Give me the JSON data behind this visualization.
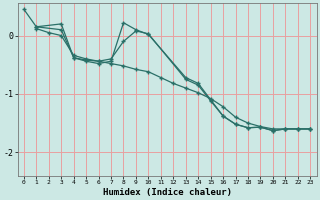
{
  "xlabel": "Humidex (Indice chaleur)",
  "background_color": "#cce8e4",
  "grid_color_v": "#e8a0a0",
  "grid_color_h": "#e8a0a0",
  "line_color": "#2a7068",
  "xlim": [
    -0.5,
    23.5
  ],
  "ylim": [
    -2.4,
    0.55
  ],
  "yticks": [
    0,
    -1,
    -2
  ],
  "xticks": [
    0,
    1,
    2,
    3,
    4,
    5,
    6,
    7,
    8,
    9,
    10,
    11,
    12,
    13,
    14,
    15,
    16,
    17,
    18,
    19,
    20,
    21,
    22,
    23
  ],
  "series": [
    {
      "x": [
        0,
        1,
        3,
        4,
        5,
        6,
        7,
        8,
        9,
        10,
        13,
        14,
        15,
        16,
        17,
        18,
        19,
        20,
        21,
        22,
        23
      ],
      "y": [
        0.45,
        0.15,
        0.2,
        -0.38,
        -0.42,
        -0.44,
        -0.4,
        -0.1,
        0.08,
        0.03,
        -0.75,
        -0.85,
        -1.12,
        -1.38,
        -1.52,
        -1.58,
        -1.57,
        -1.63,
        -1.6,
        -1.6,
        -1.6
      ]
    },
    {
      "x": [
        1,
        3,
        4,
        5,
        6,
        7,
        8,
        9,
        10,
        13,
        14,
        15,
        16,
        17,
        18,
        19,
        20,
        21,
        22,
        23
      ],
      "y": [
        0.15,
        0.1,
        -0.38,
        -0.44,
        -0.48,
        -0.44,
        0.22,
        0.1,
        0.02,
        -0.72,
        -0.82,
        -1.1,
        -1.38,
        -1.52,
        -1.58,
        -1.57,
        -1.63,
        -1.6,
        -1.6,
        -1.6
      ]
    },
    {
      "x": [
        1,
        2,
        3,
        4,
        5,
        6,
        7,
        8,
        9,
        10,
        11,
        12,
        13,
        14,
        15,
        16,
        17,
        18,
        19,
        20,
        21,
        22,
        23
      ],
      "y": [
        0.12,
        0.05,
        0.0,
        -0.34,
        -0.4,
        -0.44,
        -0.48,
        -0.52,
        -0.58,
        -0.62,
        -0.72,
        -0.82,
        -0.9,
        -0.98,
        -1.08,
        -1.22,
        -1.4,
        -1.5,
        -1.56,
        -1.6,
        -1.6,
        -1.6,
        -1.6
      ]
    }
  ]
}
